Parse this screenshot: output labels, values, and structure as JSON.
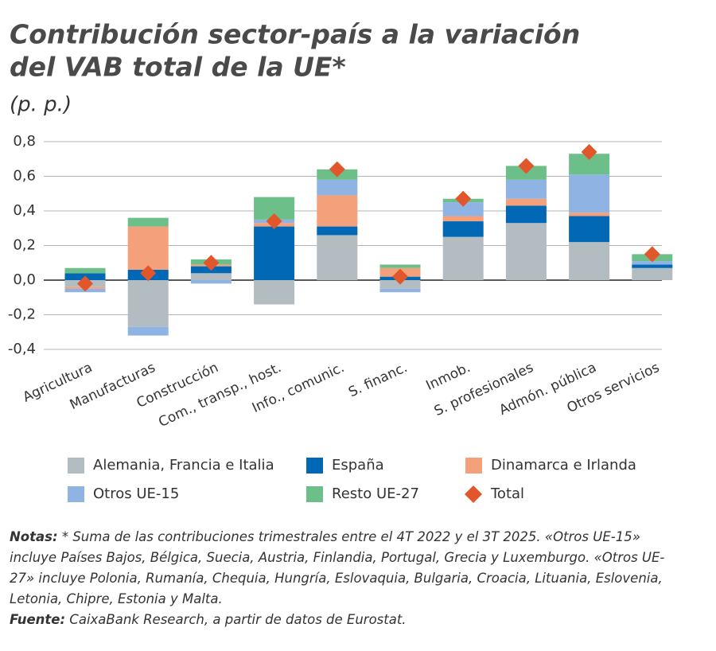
{
  "chart_data": {
    "type": "bar",
    "stacked": true,
    "title": [
      "Contribución sector-país a la variación",
      "del VAB total de la UE*"
    ],
    "subtitle": "(p. p.)",
    "categories": [
      "Agricultura",
      "Manufacturas",
      "Construcción",
      "Com., transp., host.",
      "Info., comunic.",
      "S. financ.",
      "Inmob.",
      "S. profesionales",
      "Admón. pública",
      "Otros servicios"
    ],
    "series": [
      {
        "name": "Alemania, Francia e Italia",
        "color": "#b3bcc1",
        "values": [
          -0.04,
          -0.27,
          0.04,
          -0.14,
          0.26,
          -0.05,
          0.25,
          0.33,
          0.22,
          0.07
        ]
      },
      {
        "name": "España",
        "color": "#0068b4",
        "values": [
          0.04,
          0.06,
          0.04,
          0.31,
          0.05,
          0.02,
          0.09,
          0.1,
          0.15,
          0.02
        ]
      },
      {
        "name": "Dinamarca e Irlanda",
        "color": "#f4a07a",
        "values": [
          -0.01,
          0.25,
          0.01,
          0.02,
          0.18,
          0.05,
          0.03,
          0.04,
          0.02,
          0.0
        ]
      },
      {
        "name": "Otros UE-15",
        "color": "#8fb4e3",
        "values": [
          -0.02,
          -0.05,
          -0.02,
          0.02,
          0.09,
          -0.02,
          0.08,
          0.11,
          0.22,
          0.02
        ]
      },
      {
        "name": "Resto UE-27",
        "color": "#6dbf8a",
        "values": [
          0.03,
          0.05,
          0.03,
          0.13,
          0.06,
          0.02,
          0.02,
          0.08,
          0.12,
          0.04
        ]
      },
      {
        "name": "Total",
        "color": "#e2562b",
        "marker": "diamond",
        "values": [
          -0.02,
          0.04,
          0.1,
          0.34,
          0.64,
          0.02,
          0.47,
          0.66,
          0.74,
          0.15
        ]
      }
    ],
    "ylim": [
      -0.4,
      0.8
    ],
    "yticks": [
      {
        "value": 0.8,
        "label": "0,8"
      },
      {
        "value": 0.6,
        "label": "0,6"
      },
      {
        "value": 0.4,
        "label": "0,4"
      },
      {
        "value": 0.2,
        "label": "0,2"
      },
      {
        "value": 0,
        "label": "0,0"
      },
      {
        "value": -0.2,
        "label": "-0,2"
      },
      {
        "value": -0.4,
        "label": "-0,4"
      }
    ],
    "grid": true
  },
  "notes": {
    "label": "Notas:",
    "text": " * Suma de las contribuciones trimestrales entre el 4T 2022 y el 3T 2025. «Otros UE-15» incluye Países Bajos, Bélgica, Suecia, Austria, Finlandia, Portugal, Grecia y Luxemburgo. «Otros UE-27» incluye Polonia, Rumanía, Chequia, Hungría, Eslovaquia, Bulgaria, Croacia, Lituania, Eslovenia, Letonia, Chipre, Estonia y Malta."
  },
  "source": {
    "label": "Fuente:",
    "text": " CaixaBank Research, a partir de datos de Eurostat."
  }
}
